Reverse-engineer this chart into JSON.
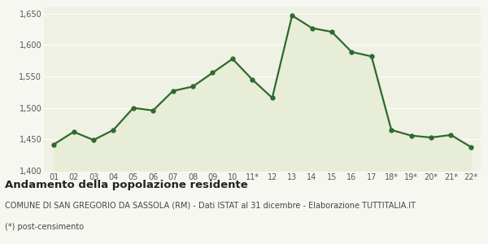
{
  "x_labels": [
    "01",
    "02",
    "03",
    "04",
    "05",
    "06",
    "07",
    "08",
    "09",
    "10",
    "11*",
    "12",
    "13",
    "14",
    "15",
    "16",
    "17",
    "18*",
    "19*",
    "20*",
    "21*",
    "22*"
  ],
  "values": [
    1442,
    1462,
    1449,
    1465,
    1500,
    1496,
    1527,
    1534,
    1556,
    1578,
    1545,
    1516,
    1647,
    1627,
    1621,
    1589,
    1582,
    1465,
    1456,
    1453,
    1457,
    1438
  ],
  "line_color": "#2d6a2d",
  "fill_color": "#e8edd8",
  "marker": "o",
  "marker_size": 3.5,
  "line_width": 1.6,
  "ylim": [
    1400,
    1660
  ],
  "yticks": [
    1400,
    1450,
    1500,
    1550,
    1600,
    1650
  ],
  "background_color": "#f7f7f2",
  "plot_bg_color": "#eff1e4",
  "grid_color": "#ffffff",
  "title1": "Andamento della popolazione residente",
  "title2": "COMUNE DI SAN GREGORIO DA SASSOLA (RM) - Dati ISTAT al 31 dicembre - Elaborazione TUTTITALIA.IT",
  "title3": "(*) post-censimento",
  "title1_fontsize": 9.5,
  "title2_fontsize": 7.0,
  "title3_fontsize": 7.0,
  "tick_fontsize": 7.0
}
